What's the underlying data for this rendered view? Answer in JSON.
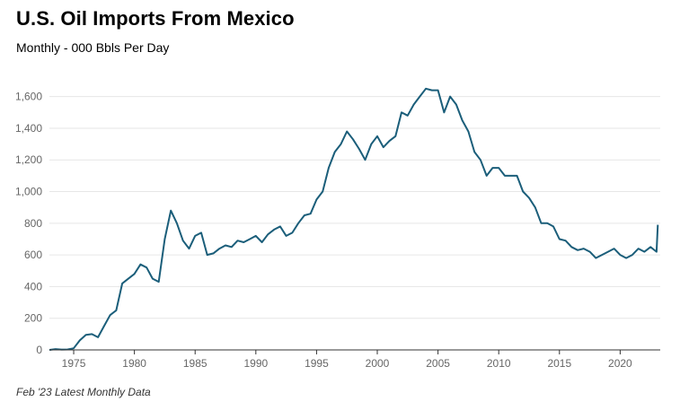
{
  "title": "U.S. Oil Imports From Mexico",
  "subtitle": "Monthly - 000 Bbls Per Day",
  "footnote": "Feb '23 Latest Monthly Data",
  "colors": {
    "line": "#1b5e7a",
    "grid": "#e6e6e6",
    "axis": "#333333"
  },
  "chart_data": {
    "type": "line",
    "title": "U.S. Oil Imports From Mexico",
    "ylabel": "000 Bbls Per Day",
    "xlabel": "",
    "xlim": [
      1973.0,
      2023.3
    ],
    "ylim": [
      0,
      1700
    ],
    "x_ticks": [
      1975,
      1980,
      1985,
      1990,
      1995,
      2000,
      2005,
      2010,
      2015,
      2020
    ],
    "x_tick_labels": [
      "1975",
      "1980",
      "1985",
      "1990",
      "1995",
      "2000",
      "2005",
      "2010",
      "2015",
      "2020"
    ],
    "y_ticks": [
      0,
      200,
      400,
      600,
      800,
      1000,
      1200,
      1400,
      1600
    ],
    "y_tick_labels": [
      "0",
      "200",
      "400",
      "600",
      "800",
      "1,000",
      "1,200",
      "1,400",
      "1,600"
    ],
    "grid": "horizontal",
    "series": [
      {
        "name": "U.S. Oil Imports From Mexico",
        "x": [
          1973.0,
          1973.5,
          1974.0,
          1974.5,
          1975.0,
          1975.5,
          1976.0,
          1976.5,
          1977.0,
          1977.5,
          1978.0,
          1978.5,
          1979.0,
          1979.5,
          1980.0,
          1980.5,
          1981.0,
          1981.5,
          1982.0,
          1982.5,
          1983.0,
          1983.5,
          1984.0,
          1984.5,
          1985.0,
          1985.5,
          1986.0,
          1986.5,
          1987.0,
          1987.5,
          1988.0,
          1988.5,
          1989.0,
          1989.5,
          1990.0,
          1990.5,
          1991.0,
          1991.5,
          1992.0,
          1992.5,
          1993.0,
          1993.5,
          1994.0,
          1994.5,
          1995.0,
          1995.5,
          1996.0,
          1996.5,
          1997.0,
          1997.5,
          1998.0,
          1998.5,
          1999.0,
          1999.5,
          2000.0,
          2000.5,
          2001.0,
          2001.5,
          2002.0,
          2002.5,
          2003.0,
          2003.5,
          2004.0,
          2004.5,
          2005.0,
          2005.5,
          2006.0,
          2006.5,
          2007.0,
          2007.5,
          2008.0,
          2008.5,
          2009.0,
          2009.5,
          2010.0,
          2010.5,
          2011.0,
          2011.5,
          2012.0,
          2012.5,
          2013.0,
          2013.5,
          2014.0,
          2014.5,
          2015.0,
          2015.5,
          2016.0,
          2016.5,
          2017.0,
          2017.5,
          2018.0,
          2018.5,
          2019.0,
          2019.5,
          2020.0,
          2020.5,
          2021.0,
          2021.5,
          2022.0,
          2022.5,
          2023.0,
          2023.1
        ],
        "values": [
          0,
          5,
          2,
          3,
          10,
          60,
          95,
          100,
          80,
          150,
          220,
          250,
          420,
          450,
          480,
          540,
          520,
          450,
          430,
          700,
          880,
          800,
          690,
          640,
          720,
          740,
          600,
          610,
          640,
          660,
          650,
          690,
          680,
          700,
          720,
          680,
          730,
          760,
          780,
          720,
          740,
          800,
          850,
          860,
          950,
          1000,
          1150,
          1250,
          1300,
          1380,
          1330,
          1270,
          1200,
          1300,
          1350,
          1280,
          1320,
          1350,
          1500,
          1480,
          1550,
          1600,
          1650,
          1640,
          1640,
          1500,
          1600,
          1550,
          1450,
          1380,
          1250,
          1200,
          1100,
          1150,
          1150,
          1100,
          1100,
          1100,
          1000,
          960,
          900,
          800,
          800,
          780,
          700,
          690,
          650,
          630,
          640,
          620,
          580,
          600,
          620,
          640,
          600,
          580,
          600,
          640,
          620,
          650,
          620,
          790
        ]
      }
    ]
  }
}
